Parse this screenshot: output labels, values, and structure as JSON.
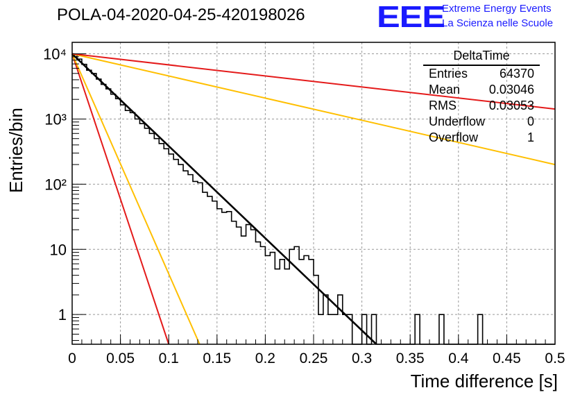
{
  "header": {
    "title": "POLA-04-2020-04-25-420198026",
    "logo": "EEE",
    "logo_line1": "Extreme Energy Events",
    "logo_line2": "La Scienza nelle Scuole"
  },
  "stats_box": {
    "name": "DeltaTime",
    "rows": [
      {
        "label": "Entries",
        "value": "64370"
      },
      {
        "label": "Mean",
        "value": "0.03046"
      },
      {
        "label": "RMS",
        "value": "0.03053"
      },
      {
        "label": "Underflow",
        "value": "0"
      },
      {
        "label": "Overflow",
        "value": "1"
      }
    ]
  },
  "chart_data": {
    "type": "histogram",
    "title": "POLA-04-2020-04-25-420198026",
    "xlabel": "Time difference [s]",
    "ylabel": "Entries/bin",
    "xlim": [
      0,
      0.5
    ],
    "ylim": [
      0.35,
      15000
    ],
    "yscale": "log",
    "grid": true,
    "x_ticks": [
      "0",
      "0.05",
      "0.1",
      "0.15",
      "0.2",
      "0.25",
      "0.3",
      "0.35",
      "0.4",
      "0.45",
      "0.5"
    ],
    "y_ticks": [
      {
        "value": 1,
        "label": "1"
      },
      {
        "value": 10,
        "label": "10"
      },
      {
        "value": 100,
        "label": "10²"
      },
      {
        "value": 1000,
        "label": "10³"
      },
      {
        "value": 10000,
        "label": "10⁴"
      }
    ],
    "histogram": {
      "bin_width": 0.005,
      "counts": [
        9800,
        8300,
        6900,
        5600,
        5000,
        4100,
        3400,
        2900,
        2400,
        2050,
        1650,
        1350,
        1250,
        1000,
        850,
        720,
        600,
        500,
        420,
        350,
        290,
        240,
        200,
        160,
        140,
        110,
        105,
        75,
        65,
        55,
        42,
        37,
        38,
        27,
        22,
        16,
        24,
        20,
        13,
        11,
        8,
        9,
        5,
        7,
        5,
        10,
        11,
        7,
        8,
        7,
        4,
        1,
        2,
        1,
        1,
        2,
        1,
        1,
        0,
        0,
        1,
        0,
        1,
        0,
        0,
        0,
        0,
        0,
        0,
        0,
        0,
        1,
        0,
        0,
        0,
        0,
        1,
        0,
        0,
        0,
        0,
        0,
        0,
        0,
        1,
        0,
        0,
        0,
        0,
        0,
        0,
        0,
        0,
        0,
        0,
        0,
        0,
        0,
        0,
        0
      ]
    },
    "series": [
      {
        "color": "#e41a1a",
        "points": [
          [
            0,
            10000
          ],
          [
            0.1,
            0.35
          ]
        ]
      },
      {
        "color": "#ffbf00",
        "points": [
          [
            0,
            10000
          ],
          [
            0.132,
            0.35
          ]
        ]
      },
      {
        "color": "#000000",
        "points": [
          [
            0,
            10000
          ],
          [
            0.315,
            0.35
          ]
        ]
      },
      {
        "color": "#ffbf00",
        "points": [
          [
            0,
            10000
          ],
          [
            0.5,
            200
          ]
        ]
      },
      {
        "color": "#e41a1a",
        "points": [
          [
            0,
            10000
          ],
          [
            0.5,
            1420
          ]
        ]
      }
    ]
  }
}
